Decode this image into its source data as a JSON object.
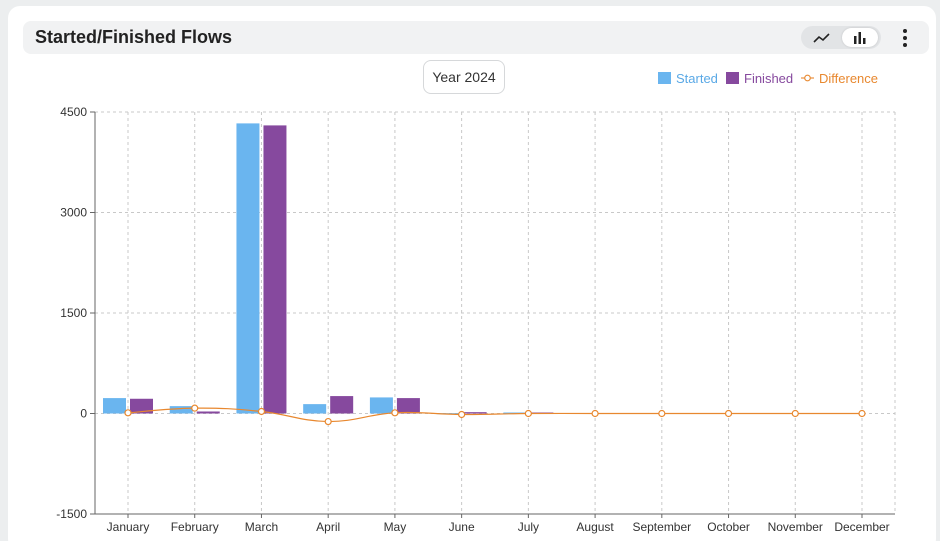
{
  "card": {
    "title": "Started/Finished Flows",
    "toggle": {
      "active": "bar",
      "options": [
        "line-chart-icon",
        "bar-chart-icon"
      ]
    },
    "menu_icon": "vertical-dots-icon"
  },
  "year_label": "Year 2024",
  "colors": {
    "started": "#6ab5ef",
    "finished": "#86499e",
    "difference": "#e8882f",
    "grid": "#c8c8c8"
  },
  "chart_data": {
    "type": "bar",
    "categories": [
      "January",
      "February",
      "March",
      "April",
      "May",
      "June",
      "July",
      "August",
      "September",
      "October",
      "November",
      "December"
    ],
    "series": [
      {
        "name": "Started",
        "type": "bar",
        "values": [
          230,
          110,
          4330,
          140,
          240,
          5,
          15,
          0,
          0,
          0,
          0,
          0
        ]
      },
      {
        "name": "Finished",
        "type": "bar",
        "values": [
          220,
          30,
          4300,
          260,
          230,
          20,
          15,
          0,
          0,
          0,
          0,
          0
        ]
      },
      {
        "name": "Difference",
        "type": "line",
        "values": [
          10,
          80,
          30,
          -120,
          10,
          -15,
          0,
          0,
          0,
          0,
          0,
          0
        ]
      }
    ],
    "ylim": [
      -1500,
      4500
    ],
    "yticks": [
      4500,
      3000,
      1500,
      0,
      -1500
    ],
    "grid": true,
    "legend": "top-right"
  }
}
